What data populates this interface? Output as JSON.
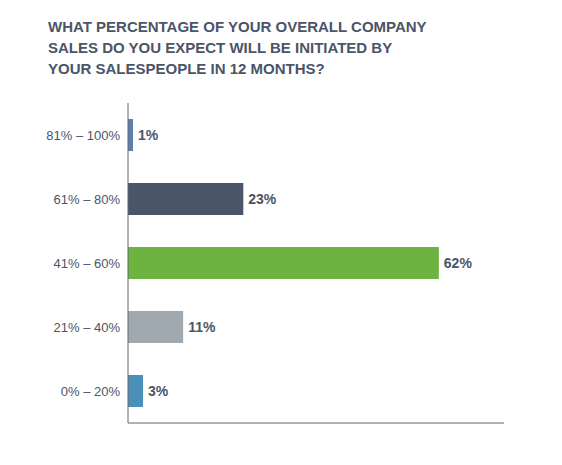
{
  "chart_data": {
    "type": "bar",
    "title": "WHAT PERCENTAGE OF YOUR OVERALL COMPANY\nSALES DO YOU EXPECT WILL BE INITIATED BY\nYOUR SALESPEOPLE IN 12 MONTHS?",
    "orientation": "horizontal",
    "categories": [
      "81% – 100%",
      "61% – 80%",
      "41% – 60%",
      "21% – 40%",
      "0% – 20%"
    ],
    "values": [
      1,
      23,
      62,
      11,
      3
    ],
    "value_labels": [
      "1%",
      "23%",
      "62%",
      "11%",
      "3%"
    ],
    "colors": [
      "#5b7fae",
      "#4a5568",
      "#6db33f",
      "#a0a8b0",
      "#4a90b8"
    ],
    "xlim": [
      0,
      75
    ],
    "data_labels": true,
    "tick_labels": "y",
    "grid": false
  }
}
